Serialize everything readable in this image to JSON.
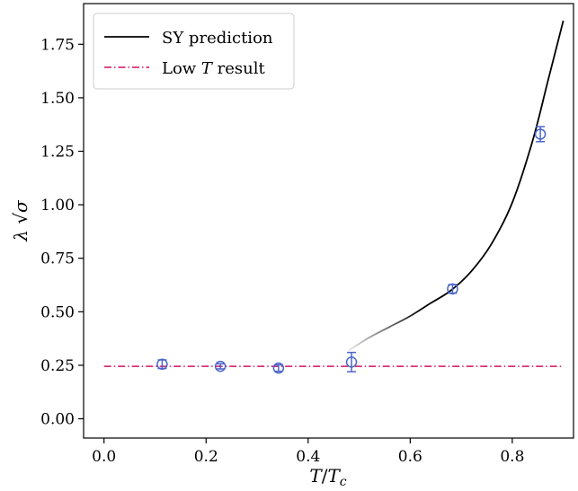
{
  "chart_data": {
    "type": "scatter",
    "xlabel": "T/T_c",
    "ylabel": "λ √σ",
    "xlim": [
      -0.04,
      0.92
    ],
    "ylim": [
      -0.09,
      1.94
    ],
    "xticks": [
      "0.0",
      "0.2",
      "0.4",
      "0.6",
      "0.8"
    ],
    "xtick_values": [
      0.0,
      0.2,
      0.4,
      0.6,
      0.8
    ],
    "yticks": [
      "0.00",
      "0.25",
      "0.50",
      "0.75",
      "1.00",
      "1.25",
      "1.50",
      "1.75"
    ],
    "ytick_values": [
      0.0,
      0.25,
      0.5,
      0.75,
      1.0,
      1.25,
      1.5,
      1.75
    ],
    "legend_position": "top-left",
    "series": [
      {
        "name": "SY prediction",
        "kind": "curve",
        "color": "#000000",
        "x": [
          0.48,
          0.52,
          0.56,
          0.6,
          0.64,
          0.68,
          0.72,
          0.76,
          0.8,
          0.84,
          0.87,
          0.9
        ],
        "y": [
          0.32,
          0.38,
          0.43,
          0.48,
          0.54,
          0.6,
          0.69,
          0.82,
          1.01,
          1.3,
          1.58,
          1.86
        ]
      },
      {
        "name": "Low T result",
        "kind": "hline",
        "color": "#d6337a",
        "x": [
          0.0,
          0.9
        ],
        "y": [
          0.245,
          0.245
        ]
      },
      {
        "kind": "points",
        "color": "#4a66c8",
        "x": [
          0.114,
          0.228,
          0.342,
          0.485,
          0.683,
          0.855
        ],
        "y": [
          0.255,
          0.245,
          0.237,
          0.265,
          0.607,
          1.33
        ],
        "yerr": [
          0.02,
          0.012,
          0.015,
          0.045,
          0.02,
          0.035
        ]
      }
    ]
  }
}
